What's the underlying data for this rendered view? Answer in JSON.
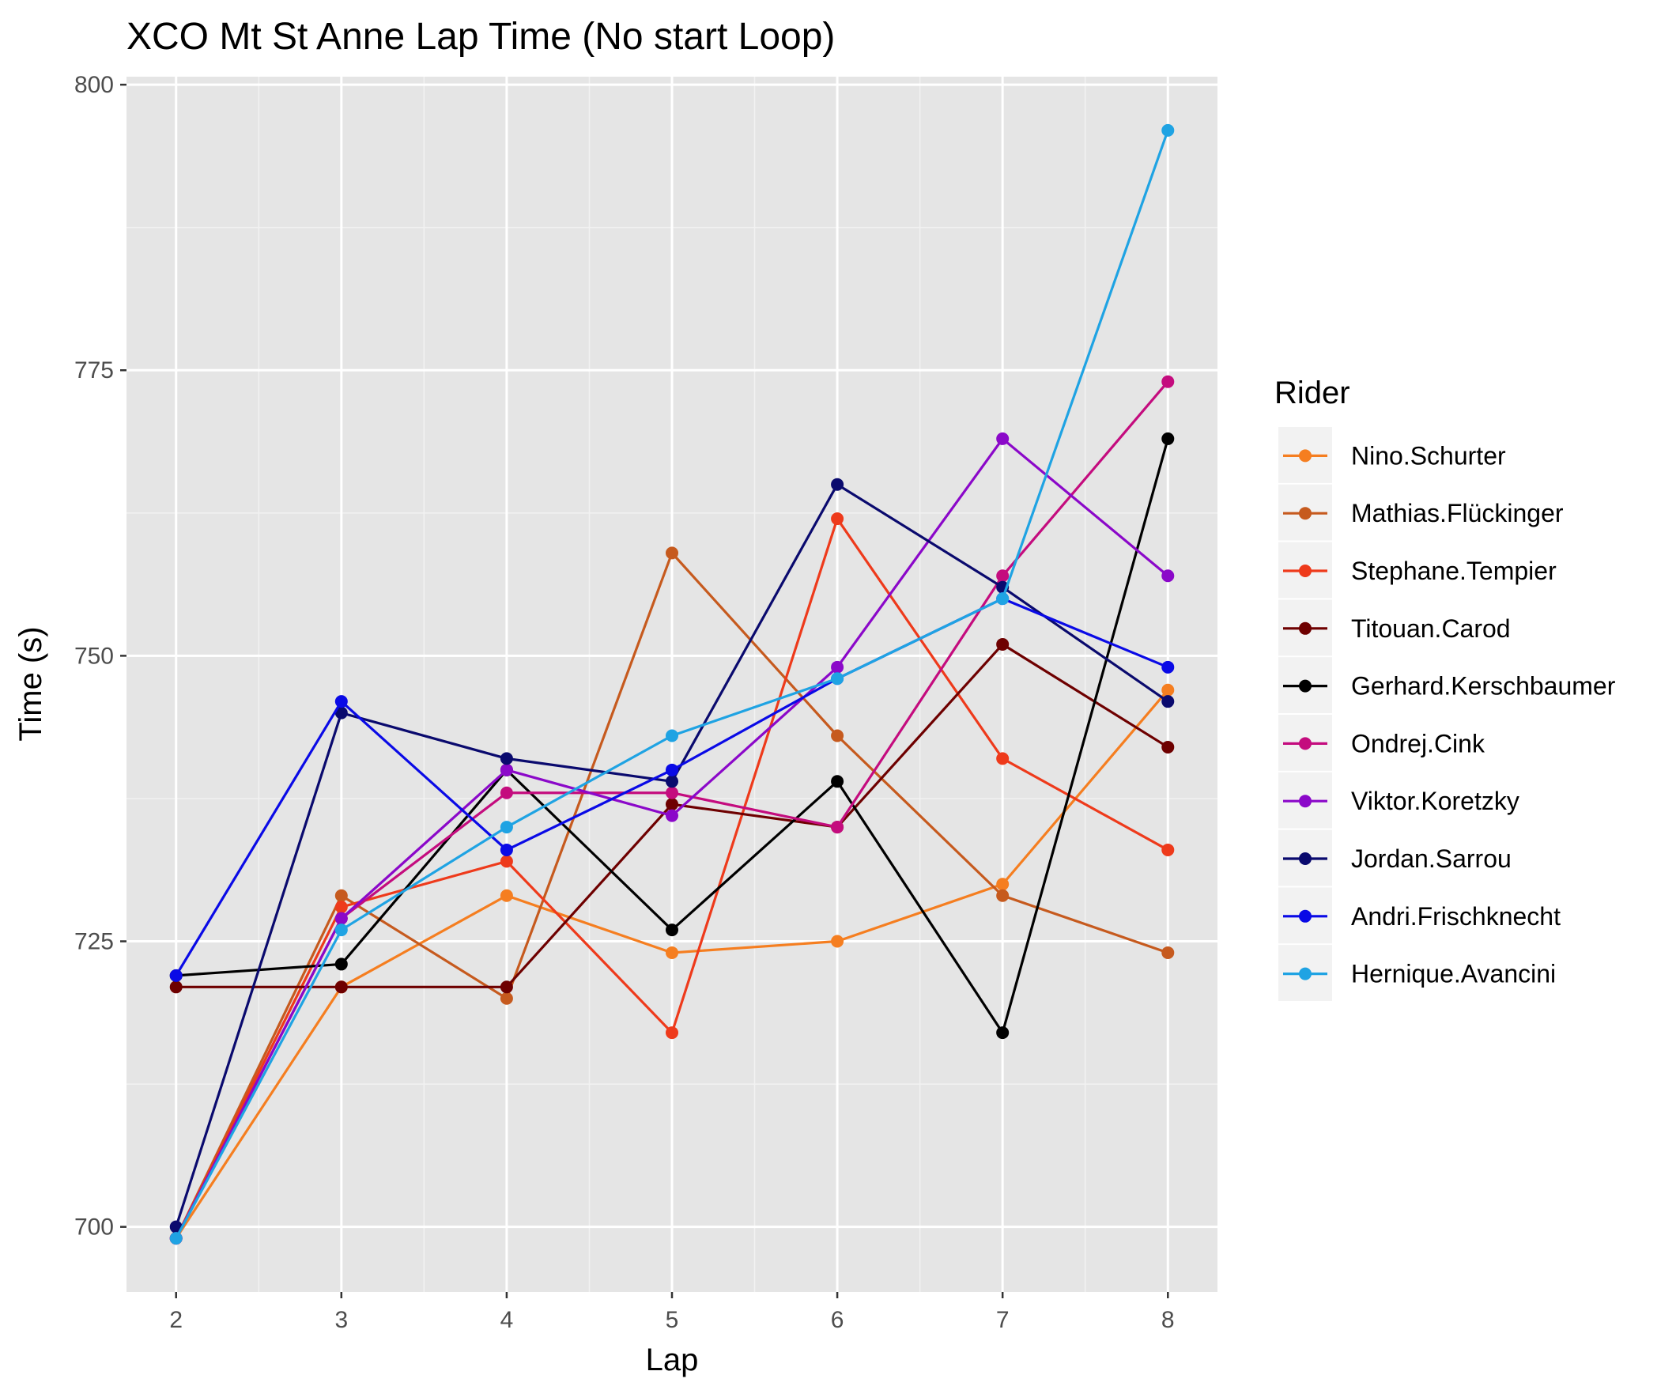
{
  "chart_data": {
    "type": "line",
    "title": "XCO Mt St Anne Lap Time (No start Loop)",
    "xlabel": "Lap",
    "ylabel": "Time (s)",
    "x": [
      2,
      3,
      4,
      5,
      6,
      7,
      8
    ],
    "xlim": [
      1.7,
      8.3
    ],
    "ylim": [
      694.3,
      800.7
    ],
    "yticks": [
      700,
      725,
      750,
      775,
      800
    ],
    "grid": true,
    "legend": {
      "title": "Rider",
      "position": "right"
    },
    "series": [
      {
        "name": "Nino.Schurter",
        "color": "#F57E20",
        "values": [
          699,
          721,
          729,
          724,
          725,
          730,
          747
        ]
      },
      {
        "name": "Mathias.Flückinger",
        "color": "#C65A1E",
        "values": [
          699,
          729,
          720,
          759,
          743,
          729,
          724
        ]
      },
      {
        "name": "Stephane.Tempier",
        "color": "#EE3A1B",
        "values": [
          699,
          728,
          732,
          717,
          762,
          741,
          733
        ]
      },
      {
        "name": "Titouan.Carod",
        "color": "#6E0000",
        "values": [
          721,
          721,
          721,
          737,
          735,
          751,
          742
        ]
      },
      {
        "name": "Gerhard.Kerschbaumer",
        "color": "#000000",
        "values": [
          722,
          723,
          740,
          726,
          739,
          717,
          769
        ]
      },
      {
        "name": "Ondrej.Cink",
        "color": "#C40C7E",
        "values": [
          699,
          727,
          738,
          738,
          735,
          757,
          774
        ]
      },
      {
        "name": "Viktor.Koretzky",
        "color": "#8B08C9",
        "values": [
          699,
          727,
          740,
          736,
          749,
          769,
          757
        ]
      },
      {
        "name": "Jordan.Sarrou",
        "color": "#0A0A6E",
        "values": [
          700,
          745,
          741,
          739,
          765,
          756,
          746
        ]
      },
      {
        "name": "Andri.Frischknecht",
        "color": "#0A0AE6",
        "values": [
          722,
          746,
          733,
          740,
          748,
          755,
          749
        ]
      },
      {
        "name": "Hernique.Avancini",
        "color": "#1FA3E3",
        "values": [
          699,
          726,
          735,
          743,
          748,
          755,
          796
        ]
      }
    ]
  }
}
